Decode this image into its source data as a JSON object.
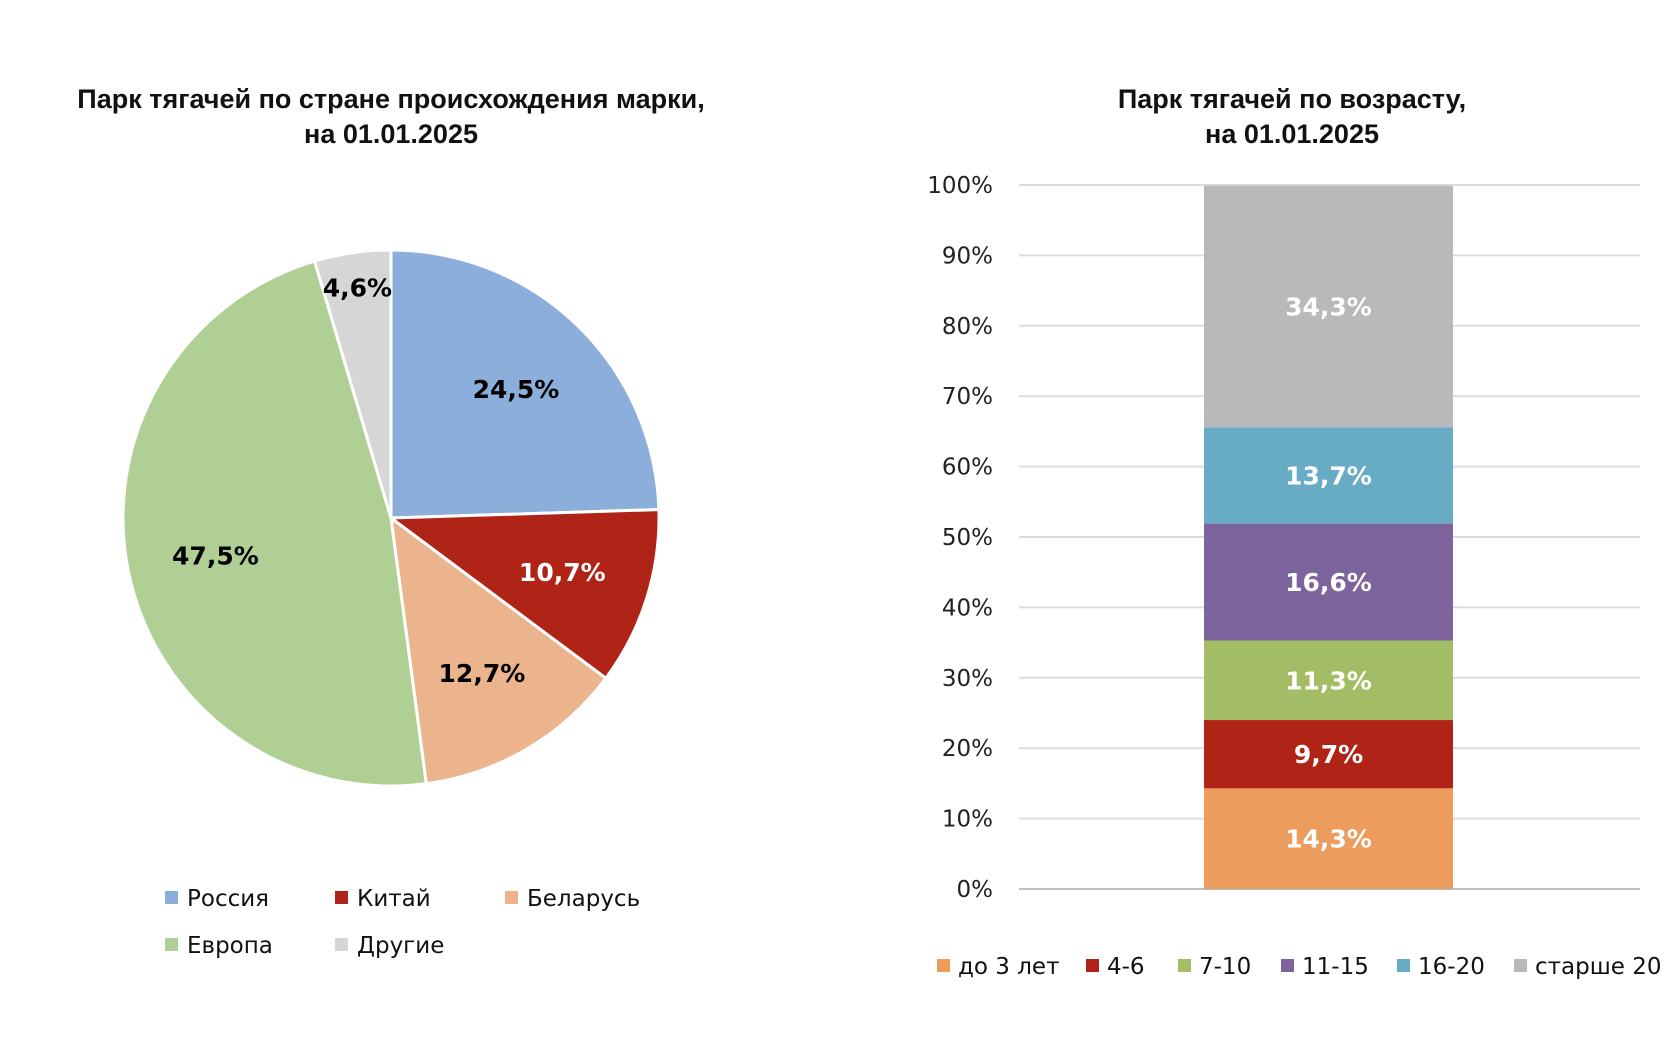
{
  "chart_data": [
    {
      "type": "pie",
      "title": "Парк тягачей по стране происхождения марки,",
      "subtitle": "на 01.01.2025",
      "slices": [
        {
          "name": "Россия",
          "value": 24.5,
          "label": "24,5%",
          "color": "#8CAEDB",
          "label_color": "#000000"
        },
        {
          "name": "Китай",
          "value": 10.7,
          "label": "10,7%",
          "color": "#B02418",
          "label_color": "#ffffff"
        },
        {
          "name": "Беларусь",
          "value": 12.7,
          "label": "12,7%",
          "color": "#ECB48C",
          "label_color": "#000000"
        },
        {
          "name": "Европа",
          "value": 47.5,
          "label": "47,5%",
          "color": "#B0CF95",
          "label_color": "#000000"
        },
        {
          "name": "Другие",
          "value": 4.6,
          "label": "4,6%",
          "color": "#D6D6D6",
          "label_color": "#000000"
        }
      ],
      "legend": [
        "Россия",
        "Китай",
        "Беларусь",
        "Европа",
        "Другие"
      ],
      "legend_position": "bottom"
    },
    {
      "type": "bar",
      "stacked": true,
      "title": "Парк тягачей по возрасту,",
      "subtitle": "на 01.01.2025",
      "ylim": [
        0,
        100
      ],
      "yticks": [
        "0%",
        "10%",
        "20%",
        "30%",
        "40%",
        "50%",
        "60%",
        "70%",
        "80%",
        "90%",
        "100%"
      ],
      "grid": true,
      "series": [
        {
          "name": "до 3 лет",
          "value": 14.3,
          "label": "14,3%",
          "color": "#EC9C5C"
        },
        {
          "name": "4-6",
          "value": 9.7,
          "label": "9,7%",
          "color": "#B02418"
        },
        {
          "name": "7-10",
          "value": 11.3,
          "label": "11,3%",
          "color": "#A3BD67"
        },
        {
          "name": "11-15",
          "value": 16.6,
          "label": "16,6%",
          "color": "#7E649C"
        },
        {
          "name": "16-20",
          "value": 13.7,
          "label": "13,7%",
          "color": "#67ABC4"
        },
        {
          "name": "старше 20",
          "value": 34.3,
          "label": "34,3%",
          "color": "#B9B9B9"
        }
      ],
      "legend_position": "bottom"
    }
  ]
}
